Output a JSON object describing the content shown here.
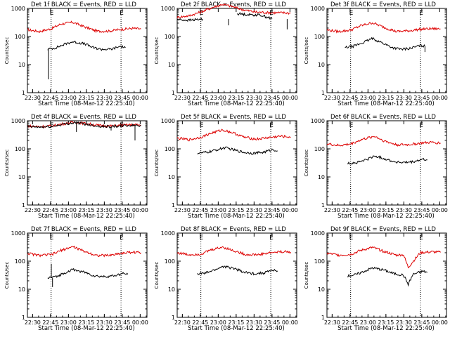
{
  "figure": {
    "start_time_label": "Start Time (08-Mar-12 22:25:40)",
    "marker_letter": "E",
    "yaxis_label": "Counts/sec",
    "colors": {
      "events": "#000000",
      "lld": "#dd0000",
      "axes": "#000000",
      "background": "#ffffff"
    }
  },
  "chart_data": [
    {
      "type": "line",
      "title": "Det 1f BLACK = Events, RED = LLD",
      "xlabel": "Start Time (08-Mar-12 22:25:40)",
      "ylabel": "Counts/sec",
      "x_ticks": [
        "22:30",
        "22:45",
        "23:00",
        "23:15",
        "23:30",
        "23:45",
        "00:00"
      ],
      "x_tick_minutes": [
        4.33,
        19.33,
        34.33,
        49.33,
        64.33,
        79.33,
        94.33
      ],
      "xlim": [
        0,
        100
      ],
      "yscale": "log",
      "ylim": [
        1,
        1000
      ],
      "y_ticks": [
        "1",
        "10",
        "100",
        "1000"
      ],
      "y_tick_values": [
        1,
        10,
        100,
        1000
      ],
      "marker_lines_minutes": [
        19.8,
        78.3
      ],
      "marker_labels": [
        "E",
        "E"
      ],
      "series": [
        {
          "name": "LLD",
          "color": "#dd0000",
          "x": [
            0,
            10,
            20,
            28,
            38,
            48,
            58,
            68,
            78,
            88,
            95
          ],
          "y": [
            175,
            150,
            190,
            280,
            320,
            220,
            155,
            155,
            180,
            195,
            185
          ]
        },
        {
          "name": "Events",
          "color": "#000000",
          "x": [
            17,
            24,
            32,
            38,
            48,
            55,
            62,
            70,
            78,
            82
          ],
          "y": [
            35,
            40,
            55,
            65,
            55,
            40,
            35,
            35,
            45,
            40
          ],
          "gap_after_index": [],
          "spikes": [
            {
              "x": 17.5,
              "y": 3
            }
          ]
        }
      ]
    },
    {
      "type": "line",
      "title": "Det 2f BLACK = Events, RED = LLD",
      "xlabel": "Start Time (08-Mar-12 22:25:40)",
      "ylabel": "Counts/sec",
      "x_ticks": [
        "22:30",
        "22:45",
        "23:00",
        "23:15",
        "23:30",
        "23:45",
        "00:00"
      ],
      "x_tick_minutes": [
        4.33,
        19.33,
        34.33,
        49.33,
        64.33,
        79.33,
        94.33
      ],
      "xlim": [
        0,
        100
      ],
      "yscale": "log",
      "ylim": [
        1,
        1000
      ],
      "y_ticks": [
        "1",
        "10",
        "100",
        "1000"
      ],
      "y_tick_values": [
        1,
        10,
        100,
        1000
      ],
      "marker_lines_minutes": [
        19.8,
        78.3
      ],
      "marker_labels": [
        "E",
        "E"
      ],
      "series": [
        {
          "name": "LLD",
          "color": "#dd0000",
          "x": [
            0,
            10,
            20,
            30,
            38,
            45,
            55,
            65,
            78,
            90,
            95
          ],
          "y": [
            480,
            550,
            750,
            1100,
            1400,
            1200,
            900,
            750,
            700,
            700,
            680
          ]
        },
        {
          "name": "Events",
          "color": "#000000",
          "x": [
            0,
            10,
            22,
            44,
            50,
            60,
            70,
            80,
            92,
            96
          ],
          "y": [
            400,
            380,
            420,
            null,
            650,
            600,
            580,
            420,
            null,
            500
          ],
          "spikes": [
            {
              "x": 43,
              "y": 250
            },
            {
              "x": 92,
              "y": 180
            }
          ]
        }
      ]
    },
    {
      "type": "line",
      "title": "Det 3f BLACK = Events, RED = LLD",
      "xlabel": "Start Time (08-Mar-12 22:25:40)",
      "ylabel": "Counts/sec",
      "x_ticks": [
        "22:30",
        "22:45",
        "23:00",
        "23:15",
        "23:30",
        "23:45",
        "00:00"
      ],
      "x_tick_minutes": [
        4.33,
        19.33,
        34.33,
        49.33,
        64.33,
        79.33,
        94.33
      ],
      "xlim": [
        0,
        100
      ],
      "yscale": "log",
      "ylim": [
        1,
        1000
      ],
      "y_ticks": [
        "1",
        "10",
        "100",
        "1000"
      ],
      "y_tick_values": [
        1,
        10,
        100,
        1000
      ],
      "marker_lines_minutes": [
        19.8,
        78.3
      ],
      "marker_labels": [
        "E",
        "E"
      ],
      "series": [
        {
          "name": "LLD",
          "color": "#dd0000",
          "x": [
            0,
            10,
            20,
            28,
            38,
            48,
            58,
            68,
            78,
            88,
            95
          ],
          "y": [
            170,
            150,
            170,
            240,
            310,
            210,
            150,
            160,
            180,
            190,
            185
          ]
        },
        {
          "name": "Events",
          "color": "#000000",
          "x": [
            15,
            22,
            30,
            38,
            46,
            55,
            62,
            70,
            78,
            82
          ],
          "y": [
            40,
            45,
            60,
            85,
            60,
            40,
            35,
            38,
            48,
            45
          ],
          "spikes": [
            {
              "x": 82,
              "y": 28
            }
          ]
        }
      ]
    },
    {
      "type": "line",
      "title": "Det 4f BLACK = Events, RED = LLD",
      "xlabel": "Start Time (08-Mar-12 22:25:40)",
      "ylabel": "Counts/sec",
      "x_ticks": [
        "22:30",
        "22:45",
        "23:00",
        "23:15",
        "23:30",
        "23:45",
        "00:00"
      ],
      "x_tick_minutes": [
        4.33,
        19.33,
        34.33,
        49.33,
        64.33,
        79.33,
        94.33
      ],
      "xlim": [
        0,
        100
      ],
      "yscale": "log",
      "ylim": [
        1,
        1000
      ],
      "y_ticks": [
        "1",
        "10",
        "100",
        "1000"
      ],
      "y_tick_values": [
        1,
        10,
        100,
        1000
      ],
      "marker_lines_minutes": [
        19.8,
        78.3
      ],
      "marker_labels": [
        "E",
        "E"
      ],
      "series": [
        {
          "name": "LLD",
          "color": "#dd0000",
          "x": [
            0,
            10,
            20,
            30,
            40,
            50,
            60,
            70,
            80,
            90,
            95
          ],
          "y": [
            650,
            620,
            650,
            780,
            900,
            780,
            680,
            650,
            700,
            720,
            700
          ]
        },
        {
          "name": "Events",
          "color": "#000000",
          "x": [
            0,
            10,
            20,
            30,
            40,
            50,
            60,
            70,
            80,
            90,
            95
          ],
          "y": [
            620,
            590,
            620,
            750,
            860,
            740,
            640,
            620,
            660,
            690,
            670
          ],
          "spikes": [
            {
              "x": 41,
              "y": 400
            },
            {
              "x": 70,
              "y": 450
            },
            {
              "x": 90,
              "y": 200
            }
          ]
        }
      ]
    },
    {
      "type": "line",
      "title": "Det 5f BLACK = Events, RED = LLD",
      "xlabel": "Start Time (08-Mar-12 22:25:40)",
      "ylabel": "Counts/sec",
      "x_ticks": [
        "22:30",
        "22:45",
        "23:00",
        "23:15",
        "23:30",
        "23:45",
        "00:00"
      ],
      "x_tick_minutes": [
        4.33,
        19.33,
        34.33,
        49.33,
        64.33,
        79.33,
        94.33
      ],
      "xlim": [
        0,
        100
      ],
      "yscale": "log",
      "ylim": [
        1,
        1000
      ],
      "y_ticks": [
        "1",
        "10",
        "100",
        "1000"
      ],
      "y_tick_values": [
        1,
        10,
        100,
        1000
      ],
      "marker_lines_minutes": [
        19.8,
        78.3
      ],
      "marker_labels": [
        "E",
        "E"
      ],
      "series": [
        {
          "name": "LLD",
          "color": "#dd0000",
          "x": [
            0,
            10,
            20,
            30,
            38,
            46,
            56,
            66,
            76,
            86,
            95
          ],
          "y": [
            240,
            210,
            260,
            380,
            470,
            380,
            260,
            220,
            250,
            280,
            265
          ]
        },
        {
          "name": "Events",
          "color": "#000000",
          "x": [
            17,
            25,
            32,
            40,
            48,
            56,
            64,
            72,
            80,
            84
          ],
          "y": [
            70,
            75,
            90,
            110,
            90,
            75,
            70,
            75,
            95,
            85
          ]
        }
      ]
    },
    {
      "type": "line",
      "title": "Det 6f BLACK = Events, RED = LLD",
      "xlabel": "Start Time (08-Mar-12 22:25:40)",
      "ylabel": "Counts/sec",
      "x_ticks": [
        "22:30",
        "22:45",
        "23:00",
        "23:15",
        "23:30",
        "23:45",
        "00:00"
      ],
      "x_tick_minutes": [
        4.33,
        19.33,
        34.33,
        49.33,
        64.33,
        79.33,
        94.33
      ],
      "xlim": [
        0,
        100
      ],
      "yscale": "log",
      "ylim": [
        1,
        1000
      ],
      "y_ticks": [
        "1",
        "10",
        "100",
        "1000"
      ],
      "y_tick_values": [
        1,
        10,
        100,
        1000
      ],
      "marker_lines_minutes": [
        19.8,
        78.3
      ],
      "marker_labels": [
        "E",
        "E"
      ],
      "series": [
        {
          "name": "LLD",
          "color": "#dd0000",
          "x": [
            0,
            10,
            20,
            30,
            40,
            48,
            58,
            68,
            78,
            88,
            95
          ],
          "y": [
            150,
            130,
            150,
            220,
            280,
            190,
            140,
            140,
            160,
            170,
            160
          ]
        },
        {
          "name": "Events",
          "color": "#000000",
          "x": [
            17,
            25,
            32,
            40,
            48,
            56,
            64,
            72,
            80,
            84
          ],
          "y": [
            30,
            32,
            40,
            55,
            45,
            35,
            32,
            34,
            42,
            40
          ]
        }
      ]
    },
    {
      "type": "line",
      "title": "Det 7f BLACK = Events, RED = LLD",
      "xlabel": "Start Time (08-Mar-12 22:25:40)",
      "ylabel": "Counts/sec",
      "x_ticks": [
        "22:30",
        "22:45",
        "23:00",
        "23:15",
        "23:30",
        "23:45",
        "00:00"
      ],
      "x_tick_minutes": [
        4.33,
        19.33,
        34.33,
        49.33,
        64.33,
        79.33,
        94.33
      ],
      "xlim": [
        0,
        100
      ],
      "yscale": "log",
      "ylim": [
        1,
        1000
      ],
      "y_ticks": [
        "1",
        "10",
        "100",
        "1000"
      ],
      "y_tick_values": [
        1,
        10,
        100,
        1000
      ],
      "marker_lines_minutes": [
        19.8,
        78.3
      ],
      "marker_labels": [
        "E",
        "E"
      ],
      "series": [
        {
          "name": "LLD",
          "color": "#dd0000",
          "x": [
            0,
            10,
            20,
            28,
            38,
            48,
            58,
            68,
            78,
            88,
            95
          ],
          "y": [
            190,
            160,
            170,
            240,
            330,
            220,
            160,
            160,
            190,
            210,
            200
          ]
        },
        {
          "name": "Events",
          "color": "#000000",
          "x": [
            17,
            24,
            32,
            38,
            48,
            56,
            64,
            72,
            80,
            84
          ],
          "y": [
            25,
            28,
            40,
            50,
            40,
            30,
            28,
            30,
            36,
            34
          ],
          "spikes": [
            {
              "x": 21,
              "y": 12
            },
            {
              "x": 20,
              "y": 80
            }
          ]
        }
      ]
    },
    {
      "type": "line",
      "title": "Det 8f BLACK = Events, RED = LLD",
      "xlabel": "Start Time (08-Mar-12 22:25:40)",
      "ylabel": "Counts/sec",
      "x_ticks": [
        "22:30",
        "22:45",
        "23:00",
        "23:15",
        "23:30",
        "23:45",
        "00:00"
      ],
      "x_tick_minutes": [
        4.33,
        19.33,
        34.33,
        49.33,
        64.33,
        79.33,
        94.33
      ],
      "xlim": [
        0,
        100
      ],
      "yscale": "log",
      "ylim": [
        1,
        1000
      ],
      "y_ticks": [
        "1",
        "10",
        "100",
        "1000"
      ],
      "y_tick_values": [
        1,
        10,
        100,
        1000
      ],
      "marker_lines_minutes": [
        19.8,
        78.3
      ],
      "marker_labels": [
        "E",
        "E"
      ],
      "series": [
        {
          "name": "LLD",
          "color": "#dd0000",
          "x": [
            0,
            10,
            20,
            28,
            38,
            48,
            58,
            68,
            78,
            88,
            95
          ],
          "y": [
            200,
            170,
            180,
            250,
            320,
            230,
            170,
            170,
            200,
            220,
            210
          ]
        },
        {
          "name": "Events",
          "color": "#000000",
          "x": [
            17,
            24,
            32,
            38,
            48,
            56,
            64,
            72,
            80,
            84
          ],
          "y": [
            35,
            38,
            50,
            65,
            55,
            40,
            36,
            38,
            48,
            45
          ]
        }
      ]
    },
    {
      "type": "line",
      "title": "Det 9f BLACK = Events, RED = LLD",
      "xlabel": "Start Time (08-Mar-12 22:25:40)",
      "ylabel": "Counts/sec",
      "x_ticks": [
        "22:30",
        "22:45",
        "23:00",
        "23:15",
        "23:30",
        "23:45",
        "00:00"
      ],
      "x_tick_minutes": [
        4.33,
        19.33,
        34.33,
        49.33,
        64.33,
        79.33,
        94.33
      ],
      "xlim": [
        0,
        100
      ],
      "yscale": "log",
      "ylim": [
        1,
        1000
      ],
      "y_ticks": [
        "1",
        "10",
        "100",
        "1000"
      ],
      "y_tick_values": [
        1,
        10,
        100,
        1000
      ],
      "marker_lines_minutes": [
        19.8,
        78.3
      ],
      "marker_labels": [
        "E",
        "E"
      ],
      "series": [
        {
          "name": "LLD",
          "color": "#dd0000",
          "x": [
            0,
            10,
            20,
            28,
            38,
            48,
            58,
            64,
            68,
            78,
            88,
            95
          ],
          "y": [
            190,
            165,
            175,
            240,
            310,
            220,
            165,
            170,
            60,
            200,
            215,
            205
          ]
        },
        {
          "name": "Events",
          "color": "#000000",
          "x": [
            17,
            24,
            32,
            38,
            48,
            56,
            64,
            68,
            72,
            80,
            84
          ],
          "y": [
            30,
            33,
            45,
            58,
            48,
            36,
            32,
            15,
            34,
            44,
            40
          ]
        }
      ]
    }
  ]
}
